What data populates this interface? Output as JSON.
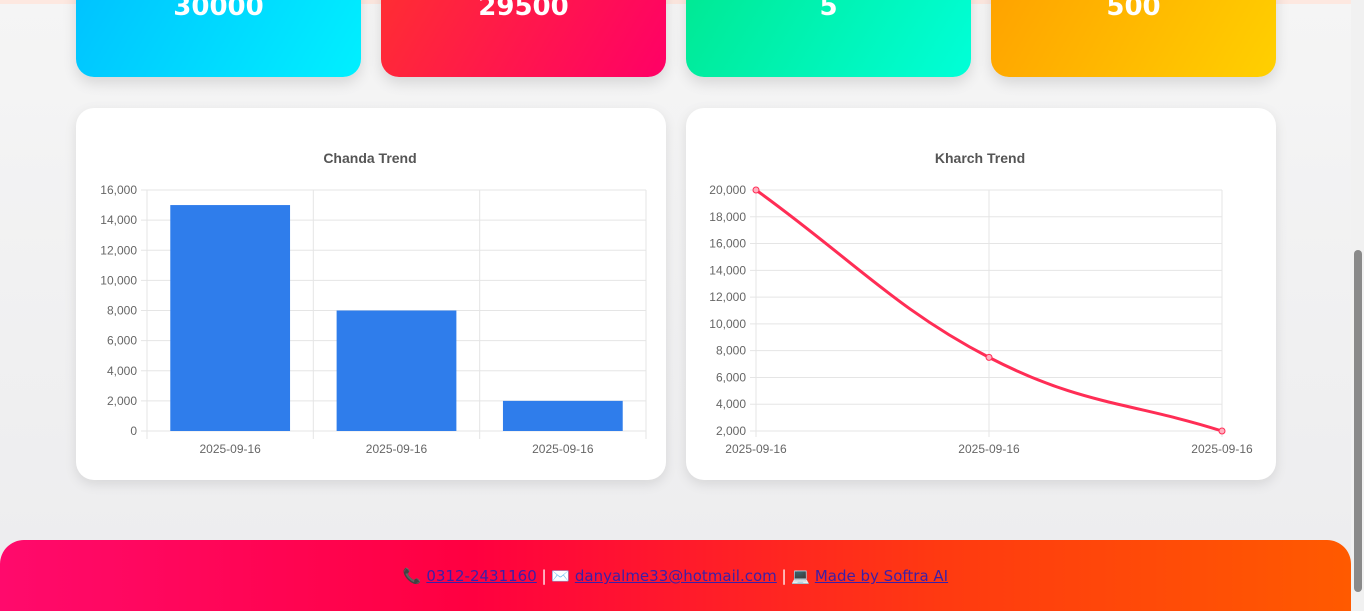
{
  "cards": [
    {
      "value": "30000",
      "color": "#00c8ff"
    },
    {
      "value": "29500",
      "color": "#ff1a4a"
    },
    {
      "value": "5",
      "color": "#00f0b0"
    },
    {
      "value": "500",
      "color": "#ffb800"
    }
  ],
  "chart_data": [
    {
      "type": "bar",
      "title": "Chanda Trend",
      "categories": [
        "2025-09-16",
        "2025-09-16",
        "2025-09-16"
      ],
      "values": [
        15000,
        8000,
        2000
      ],
      "ylim": [
        0,
        16000
      ],
      "yticks": [
        "0",
        "2,000",
        "4,000",
        "6,000",
        "8,000",
        "10,000",
        "12,000",
        "14,000",
        "16,000"
      ],
      "color": "#2f7deb",
      "grid": true
    },
    {
      "type": "line",
      "title": "Kharch Trend",
      "categories": [
        "2025-09-16",
        "2025-09-16",
        "2025-09-16"
      ],
      "values": [
        20000,
        7500,
        2000
      ],
      "ylim": [
        2000,
        20000
      ],
      "yticks": [
        "2,000",
        "4,000",
        "6,000",
        "8,000",
        "10,000",
        "12,000",
        "14,000",
        "16,000",
        "18,000",
        "20,000"
      ],
      "color": "#ff2d55",
      "grid": true
    }
  ],
  "footer": {
    "phone_icon": "phone-icon",
    "phone": "0312-2431160",
    "email_icon": "envelope-icon",
    "email": "danyalme33@hotmail.com",
    "laptop_icon": "laptop-icon",
    "credit": "Made by Softra AI",
    "sep": "|"
  }
}
